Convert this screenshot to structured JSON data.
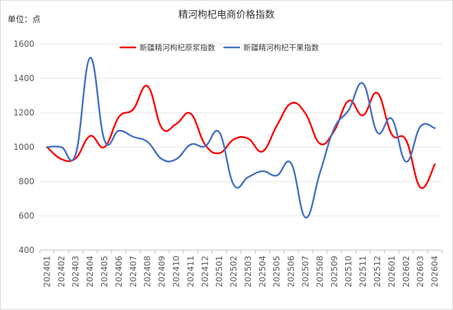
{
  "chart_data": {
    "type": "line",
    "title": "精河枸杞电商价格指数",
    "unit_label": "单位：点",
    "ylim": [
      400,
      1600
    ],
    "yticks": [
      400,
      600,
      800,
      1000,
      1200,
      1400,
      1600
    ],
    "grid": true,
    "legend": "top-center",
    "categories": [
      "202401",
      "202402",
      "202403",
      "202404",
      "202405",
      "202406",
      "202407",
      "202408",
      "202409",
      "202410",
      "202411",
      "202412",
      "202501",
      "202502",
      "202503",
      "202504",
      "202505",
      "202506",
      "202507",
      "202508",
      "202509",
      "202510",
      "202511",
      "202512",
      "202601",
      "202602",
      "202603",
      "202604"
    ],
    "series": [
      {
        "name": "新疆精河枸杞原浆指数",
        "color": "#ff0000",
        "values": [
          1000,
          930,
          935,
          1065,
          1000,
          1175,
          1220,
          1355,
          1110,
          1135,
          1195,
          1015,
          965,
          1045,
          1050,
          975,
          1125,
          1255,
          1195,
          1020,
          1095,
          1270,
          1185,
          1315,
          1075,
          1040,
          765,
          900
        ]
      },
      {
        "name": "新疆精河枸杞干果指数",
        "color": "#4472c4",
        "values": [
          1000,
          1000,
          960,
          1520,
          1040,
          1095,
          1060,
          1030,
          930,
          930,
          1015,
          1005,
          1085,
          780,
          825,
          860,
          835,
          905,
          590,
          850,
          1110,
          1215,
          1370,
          1085,
          1165,
          915,
          1120,
          1110
        ]
      }
    ]
  }
}
